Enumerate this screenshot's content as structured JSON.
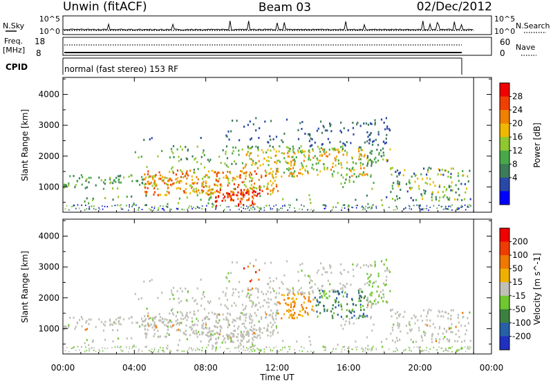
{
  "header": {
    "station": "Unwin (fitACF)",
    "beam": "Beam 03",
    "date": "02/Dec/2012"
  },
  "strip": {
    "nsky_label": "N.Sky",
    "nsearch_label": "N.Search",
    "nsky_ticks": [
      "10^5",
      "10^0"
    ],
    "nsearch_ticks": [
      "10^5",
      "10^0"
    ],
    "freq_label_1": "Freq.",
    "freq_label_2": "[MHz]",
    "freq_ticks": [
      "18",
      "8"
    ],
    "nave_label": "Nave",
    "nave_ticks": [
      "60",
      "0"
    ],
    "cpid_label": "CPID",
    "cpid_value": "normal (fast stereo) 153 RF"
  },
  "chart_data": [
    {
      "type": "heatmap",
      "panel": "power",
      "ylabel": "Slant Range [km]",
      "y_ticks": [
        "1000",
        "2000",
        "3000",
        "4000"
      ],
      "ylim": [
        180,
        4550
      ],
      "xlim_hours": [
        0,
        24
      ],
      "colorbar_label": "Power [dB]",
      "colorbar_ticks": [
        "28",
        "24",
        "20",
        "16",
        "12",
        "8",
        "4"
      ],
      "colors": [
        "#0000ff",
        "#2a48a6",
        "#3c7c58",
        "#48a848",
        "#90c830",
        "#f0b800",
        "#f08000",
        "#f04000",
        "#f00000"
      ],
      "data_end_hour": 23.0
    },
    {
      "type": "heatmap",
      "panel": "velocity",
      "ylabel": "Slant Range [km]",
      "y_ticks": [
        "1000",
        "2000",
        "3000",
        "4000"
      ],
      "ylim": [
        180,
        4550
      ],
      "xlim_hours": [
        0,
        24
      ],
      "colorbar_label": "Velocity [m s^-1]",
      "colorbar_ticks": [
        "200",
        "100",
        "50",
        "15",
        "-15",
        "-50",
        "-100",
        "-200"
      ],
      "colors": [
        "#2030c0",
        "#2860a8",
        "#3c8040",
        "#70c830",
        "#c0c0b8",
        "#f0b000",
        "#f07800",
        "#f03c00",
        "#f00000"
      ],
      "data_end_hour": 23.0
    }
  ],
  "x_axis": {
    "label": "Time UT",
    "ticks": [
      "00:00",
      "04:00",
      "08:00",
      "12:00",
      "16:00",
      "20:00",
      "00:00"
    ]
  }
}
